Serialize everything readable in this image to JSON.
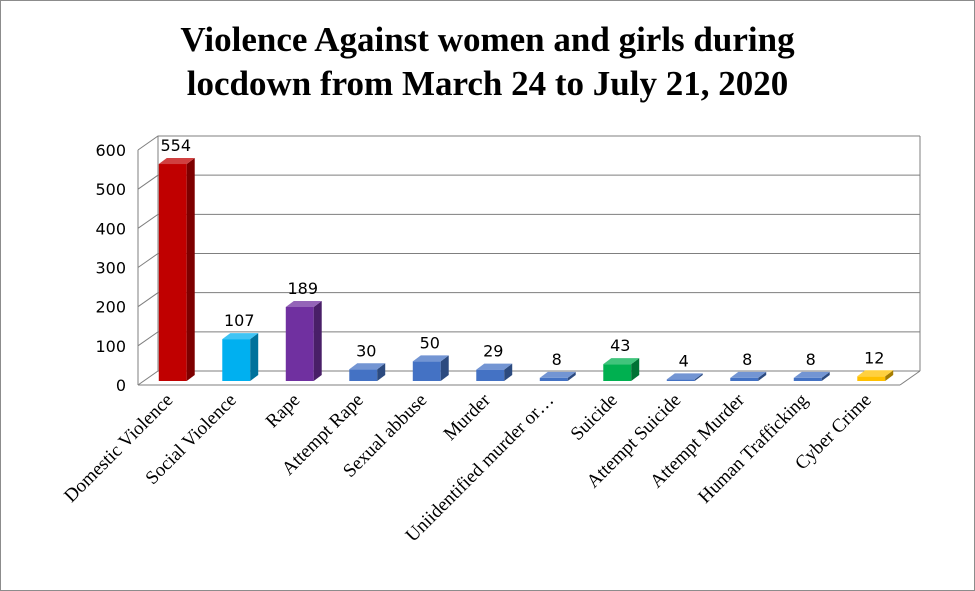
{
  "chart_data": {
    "type": "bar",
    "title_lines": [
      "Violence Against women and girls during",
      "locdown from March 24 to July 21, 2020"
    ],
    "categories": [
      "Domestic Violence",
      "Social Violence",
      "Rape",
      "Attempt Rape",
      "Sexual abbuse",
      "Murder",
      "Uniidentified murder or…",
      "Suicide",
      "Attempt Suicide",
      "Attempt Murder",
      "Human Trafficking",
      "Cyber Crime"
    ],
    "values": [
      554,
      107,
      189,
      30,
      50,
      29,
      8,
      43,
      4,
      8,
      8,
      12
    ],
    "data_labels": [
      "554",
      "107",
      "189",
      "30",
      "50",
      "29",
      "8",
      "43",
      "4",
      "8",
      "8",
      "12"
    ],
    "bar_colors": [
      "#c00000",
      "#00b0f0",
      "#7030a0",
      "#4472c4",
      "#4472c4",
      "#4472c4",
      "#4472c4",
      "#00b050",
      "#4472c4",
      "#4472c4",
      "#4472c4",
      "#ffc000"
    ],
    "ylim": [
      0,
      600
    ],
    "yticks": [
      0,
      100,
      200,
      300,
      400,
      500,
      600
    ],
    "ytick_labels": [
      "0",
      "100",
      "200",
      "300",
      "400",
      "500",
      "600"
    ],
    "grid": true,
    "style": "3d-column"
  }
}
